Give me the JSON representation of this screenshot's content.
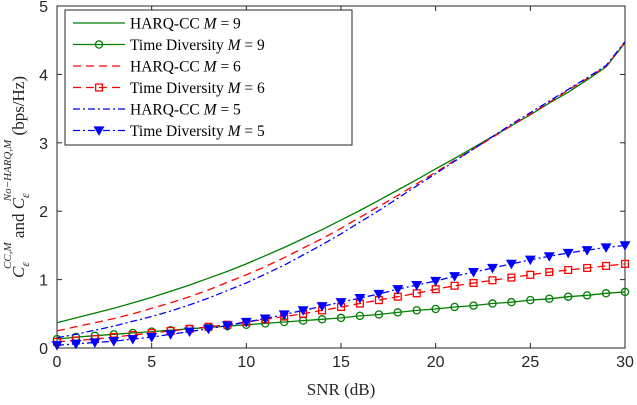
{
  "chart_data": {
    "type": "line",
    "xlabel": "SNR (dB)",
    "ylabel": "C_ε^{CC,M} and C_ε^{No-HARQ,M} (bps/Hz)",
    "xlim": [
      0,
      30
    ],
    "ylim": [
      0,
      5
    ],
    "xticks": [
      0,
      5,
      10,
      15,
      20,
      25,
      30
    ],
    "yticks": [
      0,
      1,
      2,
      3,
      4,
      5
    ],
    "grid": false,
    "legend_position": "top-left",
    "x": [
      0,
      1,
      2,
      3,
      4,
      5,
      6,
      7,
      8,
      9,
      10,
      11,
      12,
      13,
      14,
      15,
      16,
      17,
      18,
      19,
      20,
      21,
      22,
      23,
      24,
      25,
      26,
      27,
      28,
      29,
      30
    ],
    "series": [
      {
        "name": "HARQ-CC M = 9",
        "label_prefix": "HARQ-CC",
        "label_var": "M",
        "label_value": "9",
        "color": "#007f00",
        "dash": "solid",
        "marker": "none",
        "values": [
          0.37,
          0.44,
          0.51,
          0.58,
          0.66,
          0.74,
          0.83,
          0.92,
          1.02,
          1.12,
          1.23,
          1.35,
          1.47,
          1.6,
          1.73,
          1.87,
          2.01,
          2.16,
          2.31,
          2.46,
          2.62,
          2.77,
          2.93,
          3.09,
          3.25,
          3.41,
          3.58,
          3.74,
          3.92,
          4.11,
          4.46
        ]
      },
      {
        "name": "Time Diversity M = 9",
        "label_prefix": "Time Diversity",
        "label_var": "M",
        "label_value": "9",
        "color": "#007f00",
        "dash": "solid",
        "marker": "circle",
        "values": [
          0.13,
          0.16,
          0.18,
          0.2,
          0.22,
          0.24,
          0.26,
          0.28,
          0.3,
          0.32,
          0.34,
          0.36,
          0.38,
          0.4,
          0.42,
          0.44,
          0.47,
          0.49,
          0.52,
          0.55,
          0.57,
          0.6,
          0.62,
          0.65,
          0.67,
          0.7,
          0.72,
          0.75,
          0.77,
          0.8,
          0.82
        ]
      },
      {
        "name": "HARQ-CC M = 6",
        "label_prefix": "HARQ-CC",
        "label_var": "M",
        "label_value": "6",
        "color": "#ff0000",
        "dash": "dashed",
        "marker": "none",
        "values": [
          0.25,
          0.31,
          0.37,
          0.43,
          0.5,
          0.58,
          0.66,
          0.75,
          0.85,
          0.96,
          1.07,
          1.19,
          1.32,
          1.46,
          1.6,
          1.75,
          1.91,
          2.07,
          2.23,
          2.4,
          2.57,
          2.74,
          2.91,
          3.08,
          3.25,
          3.42,
          3.59,
          3.77,
          3.94,
          4.12,
          4.47
        ]
      },
      {
        "name": "Time Diversity M = 6",
        "label_prefix": "Time Diversity",
        "label_var": "M",
        "label_value": "6",
        "color": "#ff0000",
        "dash": "dashed",
        "marker": "square",
        "values": [
          0.09,
          0.11,
          0.13,
          0.16,
          0.19,
          0.22,
          0.25,
          0.28,
          0.31,
          0.34,
          0.38,
          0.42,
          0.46,
          0.5,
          0.55,
          0.6,
          0.65,
          0.7,
          0.75,
          0.8,
          0.86,
          0.91,
          0.95,
          0.99,
          1.03,
          1.07,
          1.11,
          1.14,
          1.17,
          1.2,
          1.23
        ]
      },
      {
        "name": "HARQ-CC M = 5",
        "label_prefix": "HARQ-CC",
        "label_var": "M",
        "label_value": "5",
        "color": "#0000ff",
        "dash": "dashdot",
        "marker": "none",
        "values": [
          0.15,
          0.2,
          0.26,
          0.32,
          0.39,
          0.46,
          0.54,
          0.63,
          0.73,
          0.84,
          0.95,
          1.08,
          1.21,
          1.36,
          1.51,
          1.67,
          1.84,
          2.01,
          2.19,
          2.37,
          2.55,
          2.73,
          2.91,
          3.09,
          3.27,
          3.44,
          3.61,
          3.78,
          3.95,
          4.13,
          4.48
        ]
      },
      {
        "name": "Time Diversity M = 5",
        "label_prefix": "Time Diversity",
        "label_var": "M",
        "label_value": "5",
        "color": "#0000ff",
        "dash": "dashdot",
        "marker": "triangle-down",
        "values": [
          0.04,
          0.06,
          0.08,
          0.1,
          0.13,
          0.16,
          0.2,
          0.24,
          0.28,
          0.33,
          0.38,
          0.43,
          0.49,
          0.55,
          0.61,
          0.67,
          0.73,
          0.79,
          0.86,
          0.92,
          0.98,
          1.05,
          1.11,
          1.17,
          1.23,
          1.29,
          1.34,
          1.39,
          1.43,
          1.47,
          1.5
        ]
      }
    ]
  }
}
